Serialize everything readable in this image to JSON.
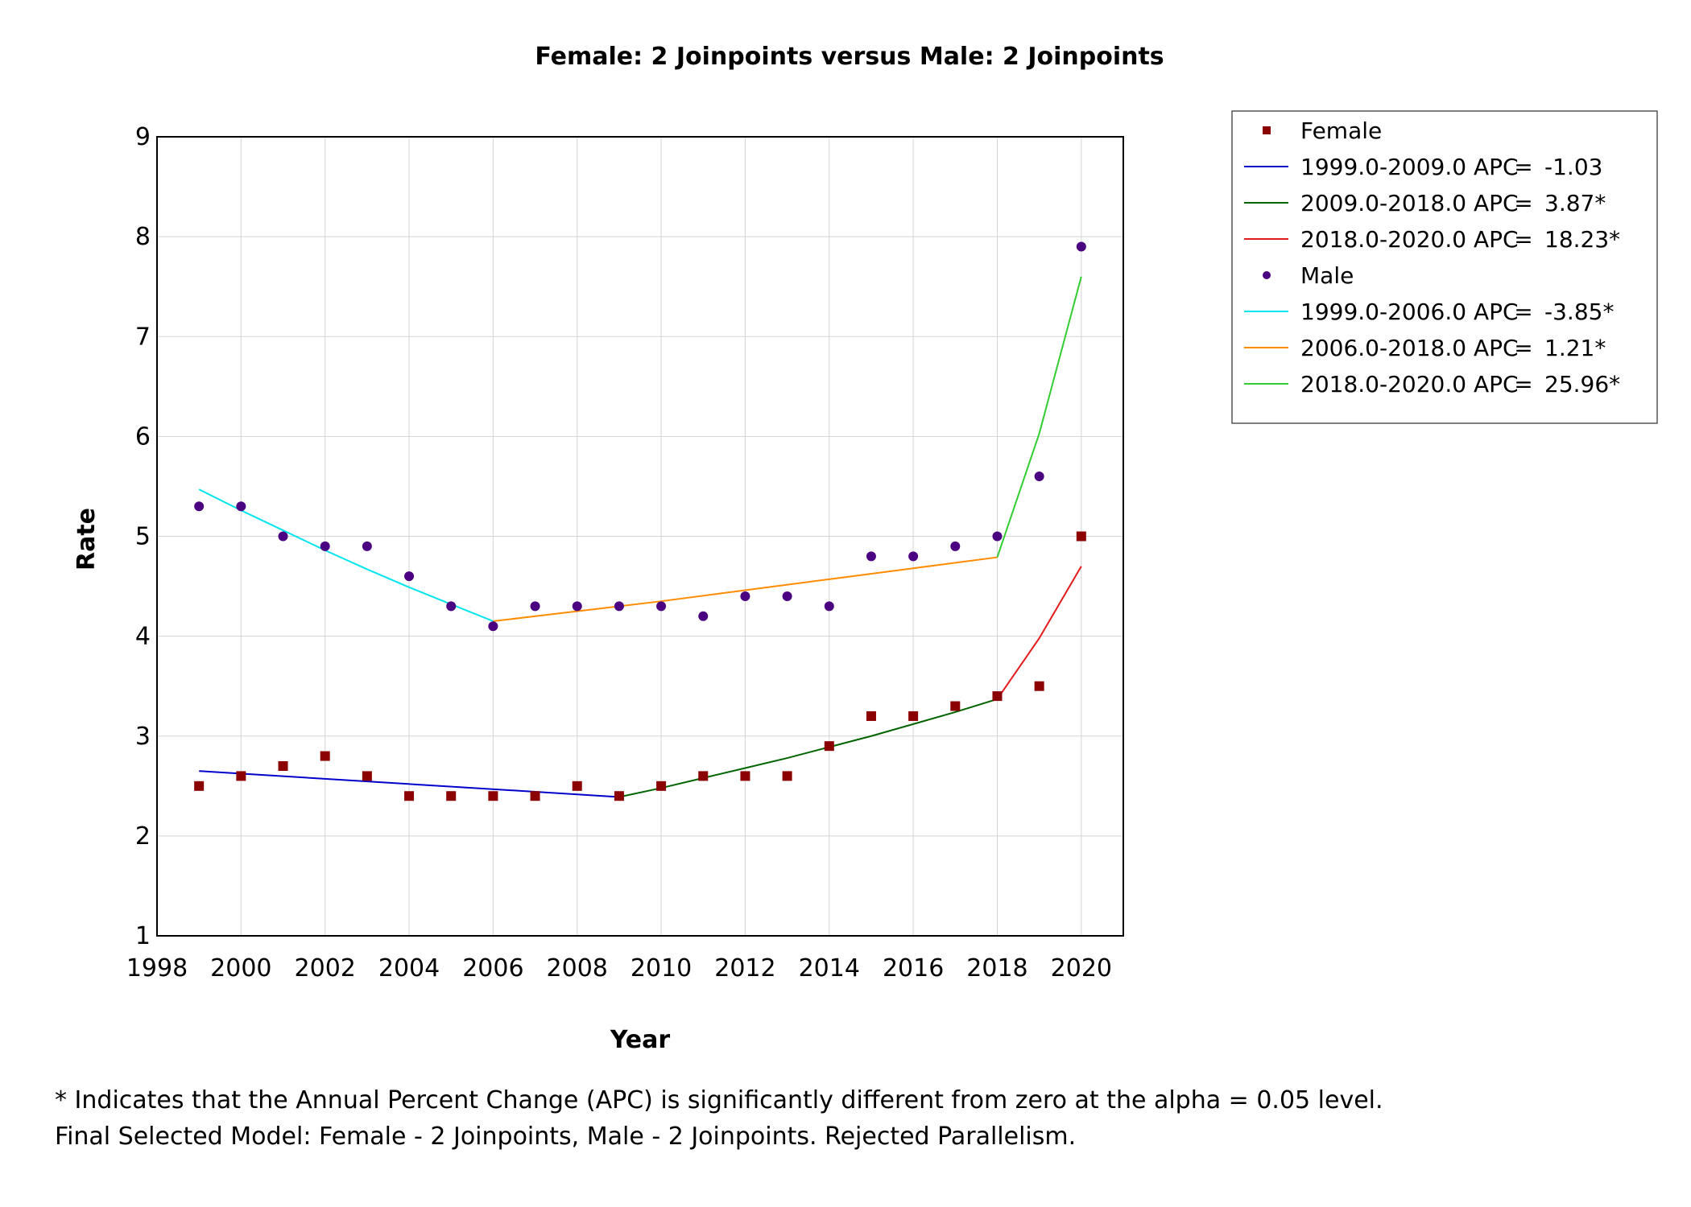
{
  "chart_data": {
    "type": "scatter",
    "title": "Female: 2 Joinpoints  versus  Male: 2 Joinpoints",
    "xlabel": "Year",
    "ylabel": "Rate",
    "xlim": [
      1998,
      2021
    ],
    "ylim": [
      1,
      9
    ],
    "x_ticks": [
      "1998",
      "2000",
      "2002",
      "2004",
      "2006",
      "2008",
      "2010",
      "2012",
      "2014",
      "2016",
      "2018",
      "2020"
    ],
    "y_ticks": [
      "1",
      "2",
      "3",
      "4",
      "5",
      "6",
      "7",
      "8",
      "9"
    ],
    "grid": true,
    "legend_position": "right",
    "series": [
      {
        "name": "Female",
        "marker": "square",
        "color": "#8b0000",
        "x": [
          1999,
          2000,
          2001,
          2002,
          2003,
          2004,
          2005,
          2006,
          2007,
          2008,
          2009,
          2010,
          2011,
          2012,
          2013,
          2014,
          2015,
          2016,
          2017,
          2018,
          2019,
          2020
        ],
        "y": [
          2.5,
          2.6,
          2.7,
          2.8,
          2.6,
          2.4,
          2.4,
          2.4,
          2.4,
          2.5,
          2.4,
          2.5,
          2.6,
          2.6,
          2.6,
          2.9,
          3.2,
          3.2,
          3.3,
          3.4,
          3.5,
          5.0
        ],
        "fits": [
          {
            "label": "1999.0-2009.0 APC",
            "eq": "=",
            "value": "-1.03",
            "color": "#0000cd",
            "x": [
              1999,
              2009
            ],
            "y": [
              2.65,
              2.39
            ]
          },
          {
            "label": "2009.0-2018.0 APC",
            "eq": "=",
            "value": "3.87*",
            "color": "#006400",
            "x": [
              2009,
              2010,
              2011,
              2012,
              2013,
              2014,
              2015,
              2016,
              2017,
              2018
            ],
            "y": [
              2.39,
              2.48,
              2.58,
              2.68,
              2.78,
              2.89,
              3.0,
              3.12,
              3.24,
              3.37
            ]
          },
          {
            "label": "2018.0-2020.0 APC",
            "eq": "=",
            "value": "18.23*",
            "color": "#e31a1c",
            "x": [
              2018,
              2019,
              2020
            ],
            "y": [
              3.37,
              3.98,
              4.7
            ]
          }
        ]
      },
      {
        "name": "Male",
        "marker": "circle",
        "color": "#4b0082",
        "x": [
          1999,
          2000,
          2001,
          2002,
          2003,
          2004,
          2005,
          2006,
          2007,
          2008,
          2009,
          2010,
          2011,
          2012,
          2013,
          2014,
          2015,
          2016,
          2017,
          2018,
          2019,
          2020
        ],
        "y": [
          5.3,
          5.3,
          5.0,
          4.9,
          4.9,
          4.6,
          4.3,
          4.1,
          4.3,
          4.3,
          4.3,
          4.3,
          4.2,
          4.4,
          4.4,
          4.3,
          4.8,
          4.8,
          4.9,
          5.0,
          5.6,
          7.9
        ],
        "fits": [
          {
            "label": "1999.0-2006.0 APC",
            "eq": "=",
            "value": "-3.85*",
            "color": "#00e5ee",
            "x": [
              1999,
              2000,
              2001,
              2002,
              2003,
              2004,
              2005,
              2006
            ],
            "y": [
              5.47,
              5.26,
              5.06,
              4.86,
              4.67,
              4.49,
              4.32,
              4.15
            ]
          },
          {
            "label": "2006.0-2018.0 APC",
            "eq": "=",
            "value": "1.21*",
            "color": "#ff8c00",
            "x": [
              2006,
              2008,
              2010,
              2012,
              2014,
              2016,
              2018
            ],
            "y": [
              4.15,
              4.25,
              4.35,
              4.46,
              4.57,
              4.68,
              4.79
            ]
          },
          {
            "label": "2018.0-2020.0 APC",
            "eq": "=",
            "value": "25.96*",
            "color": "#32cd32",
            "x": [
              2018,
              2019,
              2020
            ],
            "y": [
              4.79,
              6.03,
              7.6
            ]
          }
        ]
      }
    ]
  },
  "footnotes": {
    "line1": "* Indicates that the Annual Percent Change (APC) is significantly different from zero at the alpha = 0.05 level.",
    "line2": "Final Selected Model: Female - 2 Joinpoints, Male - 2 Joinpoints. Rejected Parallelism."
  }
}
